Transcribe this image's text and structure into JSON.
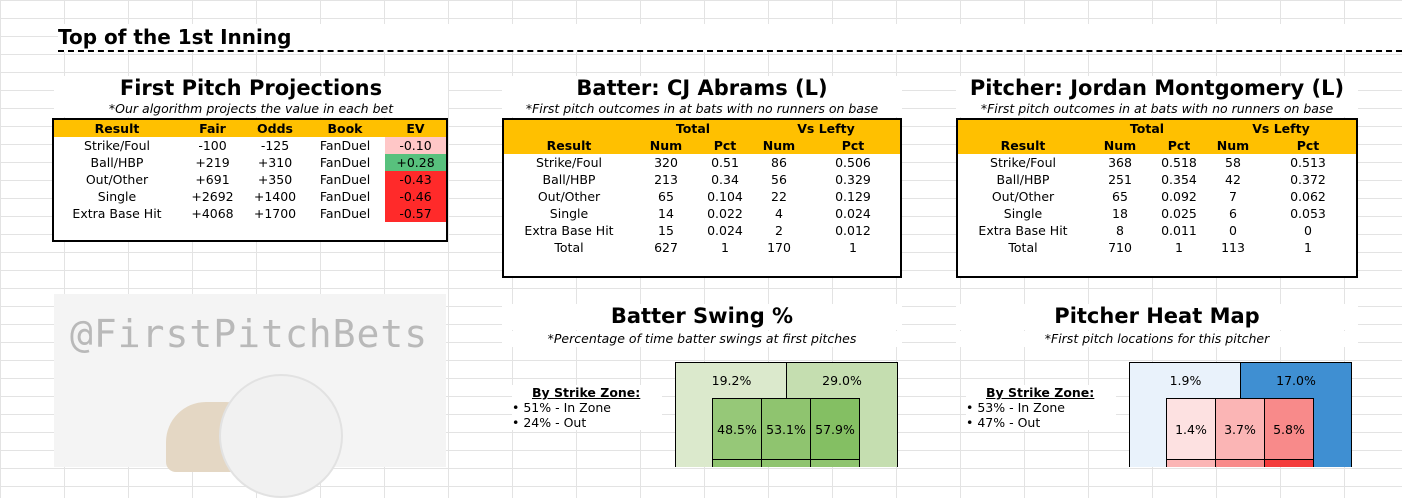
{
  "inning": "Top of the 1st Inning",
  "projections": {
    "title": "First Pitch Projections",
    "subtitle": "*Our algorithm projects the value in each bet",
    "headers": [
      "Result",
      "Fair",
      "Odds",
      "Book",
      "EV"
    ],
    "rows": [
      {
        "result": "Strike/Foul",
        "fair": "-100",
        "odds": "-125",
        "book": "FanDuel",
        "ev": "-0.10",
        "ev_class": "ev-pink"
      },
      {
        "result": "Ball/HBP",
        "fair": "+219",
        "odds": "+310",
        "book": "FanDuel",
        "ev": "+0.28",
        "ev_class": "ev-green"
      },
      {
        "result": "Out/Other",
        "fair": "+691",
        "odds": "+350",
        "book": "FanDuel",
        "ev": "-0.43",
        "ev_class": "ev-red"
      },
      {
        "result": "Single",
        "fair": "+2692",
        "odds": "+1400",
        "book": "FanDuel",
        "ev": "-0.46",
        "ev_class": "ev-red"
      },
      {
        "result": "Extra Base Hit",
        "fair": "+4068",
        "odds": "+1700",
        "book": "FanDuel",
        "ev": "-0.57",
        "ev_class": "ev-red"
      }
    ]
  },
  "batter": {
    "title": "Batter: CJ Abrams (L)",
    "subtitle": "*First pitch outcomes in at bats with no runners on base",
    "group_total": "Total",
    "group_vs": "Vs Lefty",
    "headers": [
      "Result",
      "Num",
      "Pct",
      "Num",
      "Pct"
    ],
    "rows": [
      [
        "Strike/Foul",
        "320",
        "0.51",
        "86",
        "0.506"
      ],
      [
        "Ball/HBP",
        "213",
        "0.34",
        "56",
        "0.329"
      ],
      [
        "Out/Other",
        "65",
        "0.104",
        "22",
        "0.129"
      ],
      [
        "Single",
        "14",
        "0.022",
        "4",
        "0.024"
      ],
      [
        "Extra Base Hit",
        "15",
        "0.024",
        "2",
        "0.012"
      ],
      [
        "Total",
        "627",
        "1",
        "170",
        "1"
      ]
    ]
  },
  "pitcher": {
    "title": "Pitcher: Jordan Montgomery (L)",
    "subtitle": "*First pitch outcomes in at bats with no runners on base",
    "group_total": "Total",
    "group_vs": "Vs Lefty",
    "headers": [
      "Result",
      "Num",
      "Pct",
      "Num",
      "Pct"
    ],
    "rows": [
      [
        "Strike/Foul",
        "368",
        "0.518",
        "58",
        "0.513"
      ],
      [
        "Ball/HBP",
        "251",
        "0.354",
        "42",
        "0.372"
      ],
      [
        "Out/Other",
        "65",
        "0.092",
        "7",
        "0.062"
      ],
      [
        "Single",
        "18",
        "0.025",
        "6",
        "0.053"
      ],
      [
        "Extra Base Hit",
        "8",
        "0.011",
        "0",
        "0"
      ],
      [
        "Total",
        "710",
        "1",
        "113",
        "1"
      ]
    ]
  },
  "watermark": "@FirstPitchBets",
  "swing": {
    "title": "Batter Swing %",
    "subtitle": "*Percentage of time batter swings at first pitches",
    "by_zone": "By Strike Zone:",
    "in_zone": "• 51% - In Zone",
    "out_zone": "• 24% - Out",
    "outer_left": "19.2%",
    "outer_right": "29.0%",
    "inner": [
      "48.5%",
      "53.1%",
      "57.9%"
    ]
  },
  "heat": {
    "title": "Pitcher Heat Map",
    "subtitle": "*First pitch locations for this pitcher",
    "by_zone": "By Strike Zone:",
    "in_zone": "• 53% - In Zone",
    "out_zone": "• 47% - Out",
    "outer_left": "1.9%",
    "outer_right": "17.0%",
    "inner": [
      "1.4%",
      "3.7%",
      "5.8%"
    ]
  },
  "colors": {
    "header": "#ffc000",
    "ev_red": "#ff2a2a",
    "ev_pink": "#ffc7c7",
    "ev_green": "#58c17d",
    "swing_outer": "#dbe9cc",
    "swing_outer_right": "#c5deb0",
    "swing_inner": "#8fc46f",
    "heat_outer_left": "#e9f2fb",
    "heat_outer_right": "#3f8fd2",
    "heat_inner": [
      "#fde1e1",
      "#fbb5b5",
      "#f88a8a"
    ]
  }
}
